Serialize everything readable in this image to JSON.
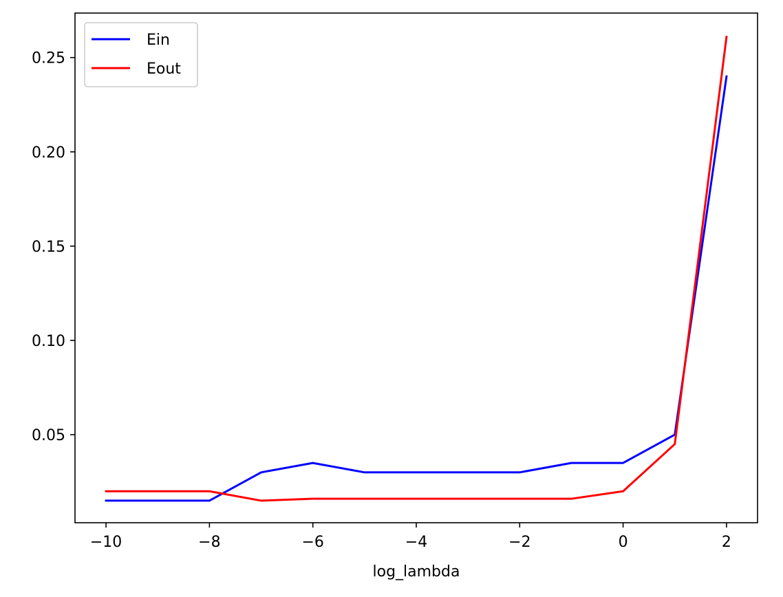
{
  "chart_data": {
    "type": "line",
    "title": "",
    "xlabel": "log_lambda",
    "ylabel": "",
    "xlim": [
      -10.6,
      2.6
    ],
    "ylim": [
      0.0033,
      0.2736
    ],
    "xticks": [
      -10,
      -8,
      -6,
      -4,
      -2,
      0,
      2
    ],
    "xtick_labels": [
      "−10",
      "−8",
      "−6",
      "−4",
      "−2",
      "0",
      "2"
    ],
    "yticks": [
      0.05,
      0.1,
      0.15,
      0.2,
      0.25
    ],
    "ytick_labels": [
      "0.05",
      "0.10",
      "0.15",
      "0.20",
      "0.25"
    ],
    "grid": false,
    "legend_position": "top-left",
    "x": [
      -10,
      -9,
      -8,
      -7,
      -6,
      -5,
      -4,
      -3,
      -2,
      -1,
      0,
      1,
      2
    ],
    "series": [
      {
        "name": "Ein",
        "color": "#0000ff",
        "values": [
          0.015,
          0.015,
          0.015,
          0.03,
          0.035,
          0.03,
          0.03,
          0.03,
          0.03,
          0.035,
          0.035,
          0.05,
          0.24
        ]
      },
      {
        "name": "Eout",
        "color": "#ff0000",
        "values": [
          0.02,
          0.02,
          0.02,
          0.015,
          0.016,
          0.016,
          0.016,
          0.016,
          0.016,
          0.016,
          0.02,
          0.045,
          0.261
        ]
      }
    ]
  }
}
